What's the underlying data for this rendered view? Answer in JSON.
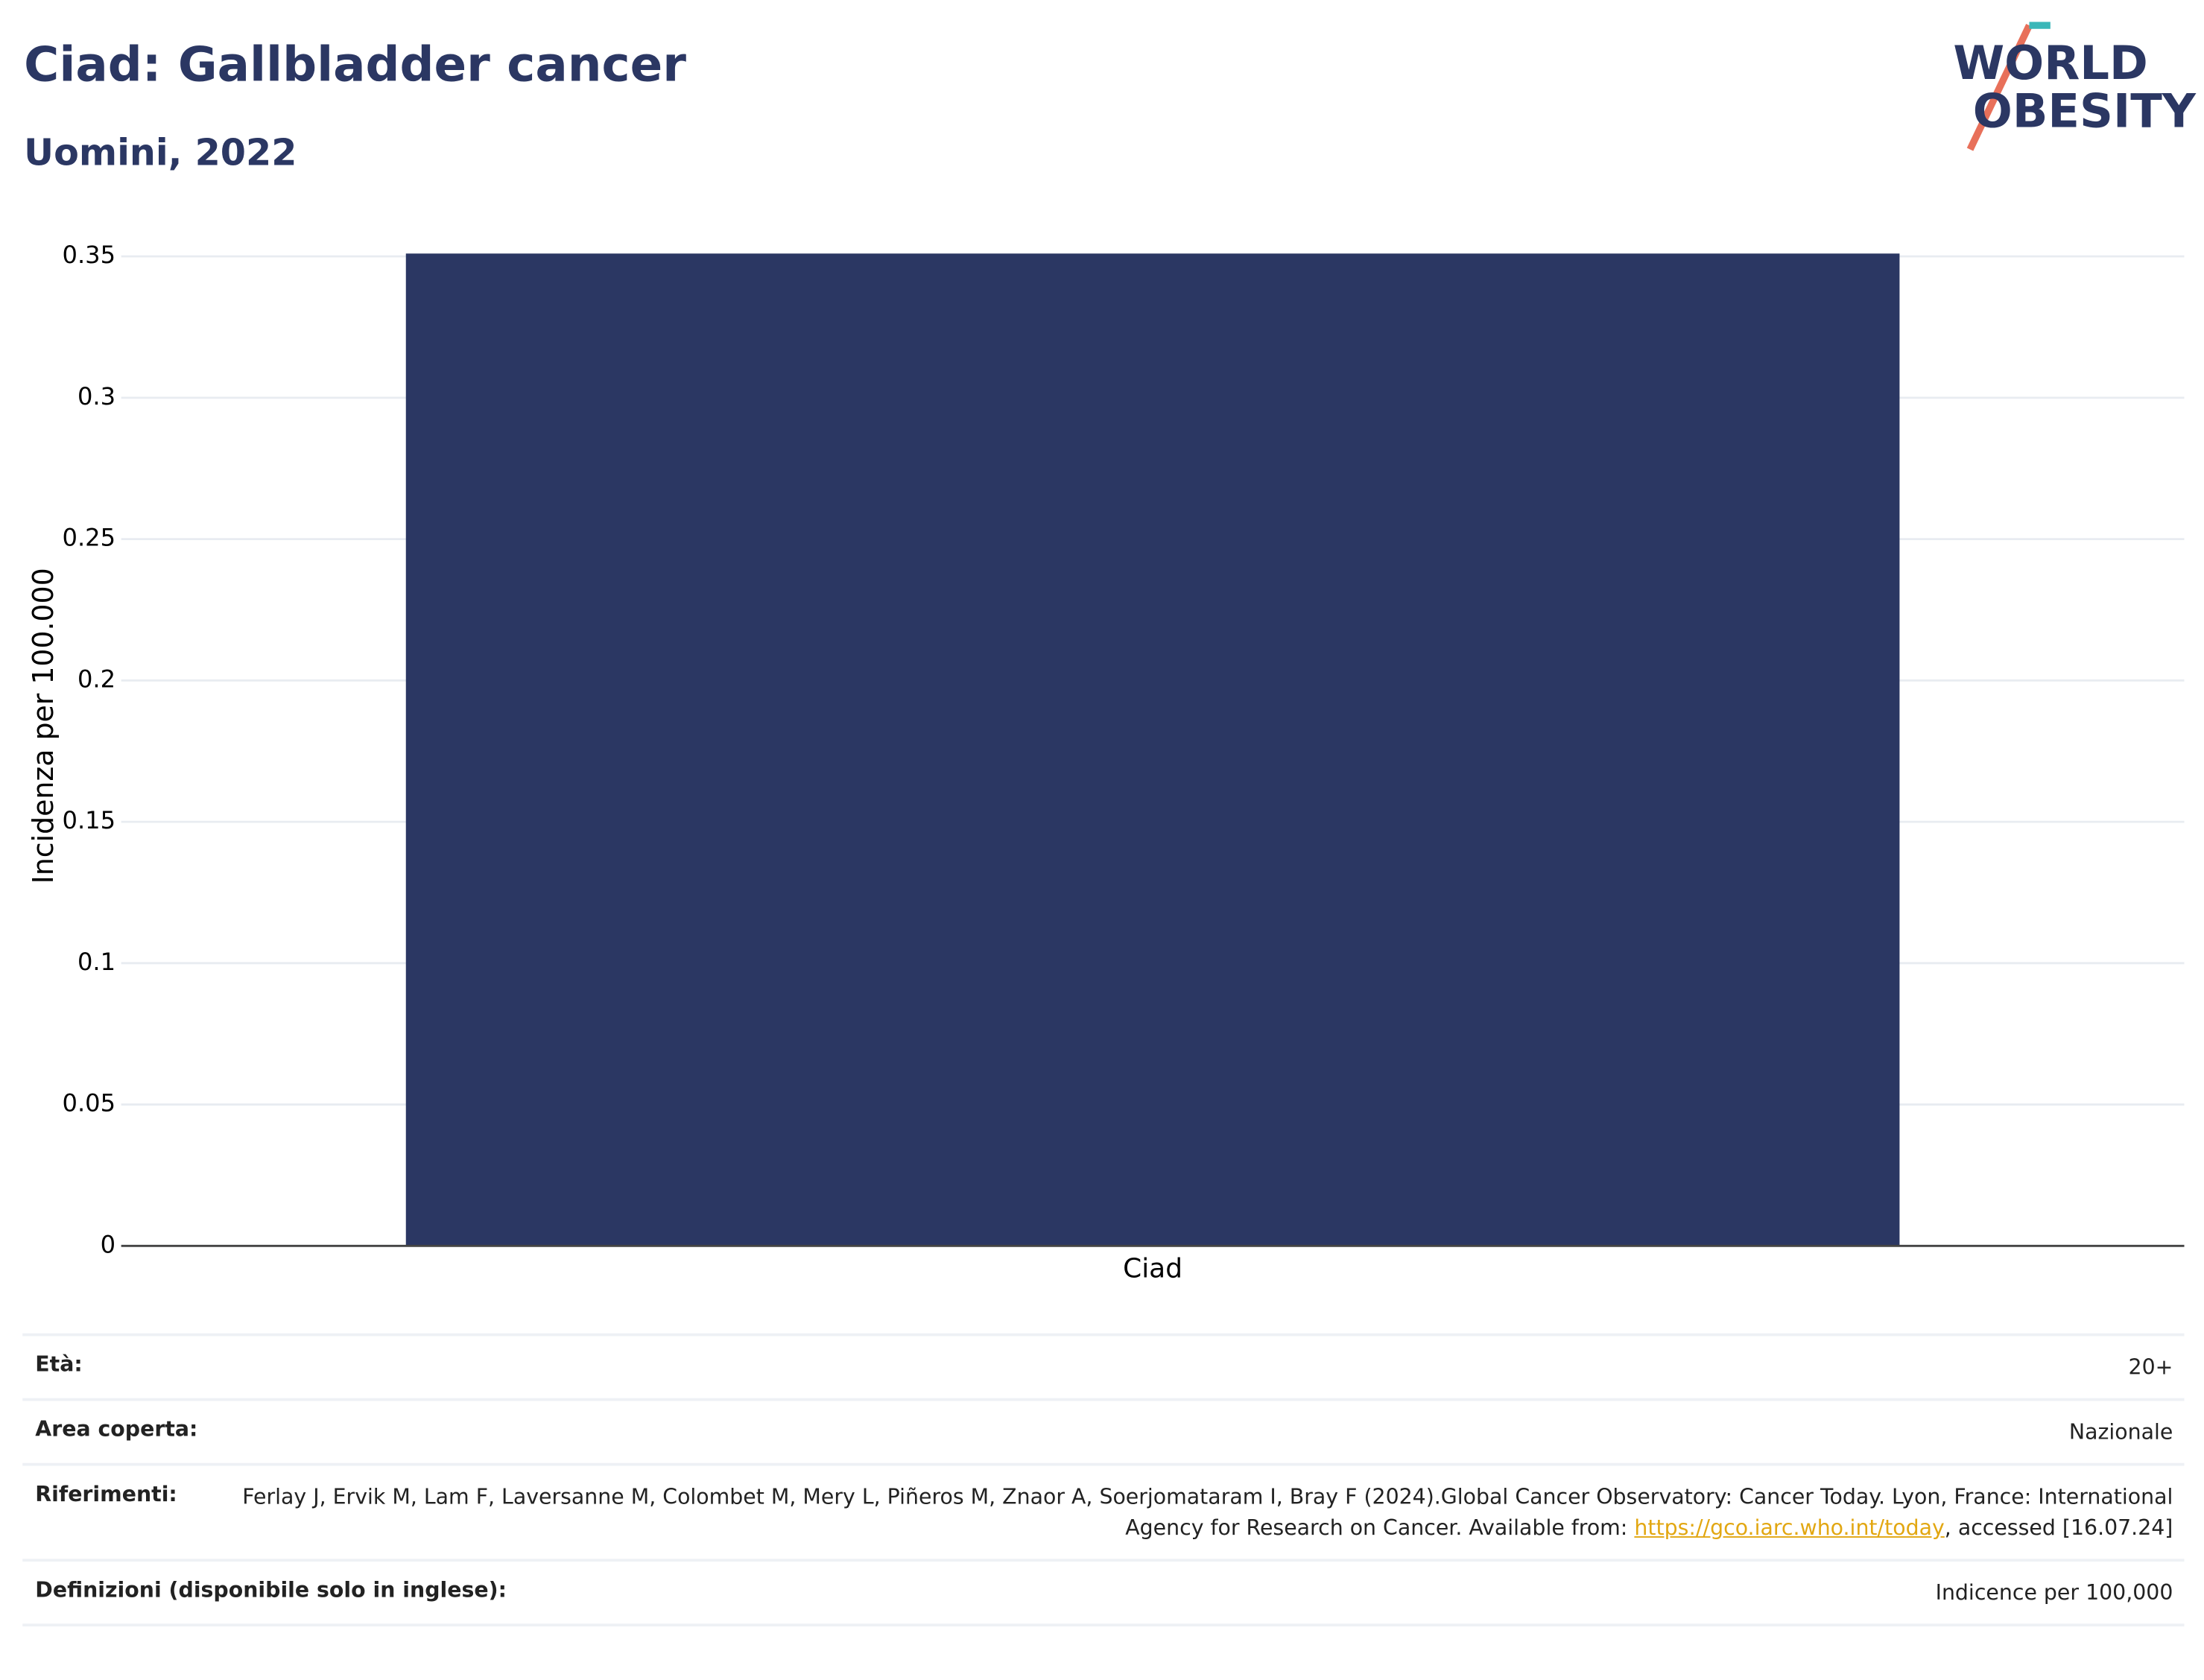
{
  "chart_data": {
    "type": "bar",
    "title": "Ciad: Gallbladder cancer",
    "subtitle": "Uomini, 2022",
    "y_label": "Incidenza per 100.000",
    "categories": [
      "Ciad"
    ],
    "values": [
      0.351
    ],
    "color": "#2b3763",
    "ylim": [
      0,
      0.36
    ],
    "yticks": [
      0,
      0.05,
      0.1,
      0.15,
      0.2,
      0.25,
      0.3,
      0.35
    ],
    "grid": true
  },
  "logo": {
    "line1": "WORLD",
    "line2": "OBESITY"
  },
  "info": [
    {
      "label": "Età:",
      "value": "20+"
    },
    {
      "label": "Area coperta:",
      "value": "Nazionale"
    },
    {
      "label": "Riferimenti:",
      "value": "Ferlay J, Ervik M, Lam F, Laversanne M, Colombet M, Mery L, Piñeros M, Znaor A, Soerjomataram I, Bray F (2024).Global Cancer Observatory: Cancer Today. Lyon, France: International Agency for Research on Cancer. Available from: ",
      "link": "https://gco.iarc.who.int/today",
      "after": ", accessed [16.07.24]"
    },
    {
      "label": "Definizioni (disponibile solo in inglese):",
      "value": "Indicence per 100,000"
    }
  ]
}
